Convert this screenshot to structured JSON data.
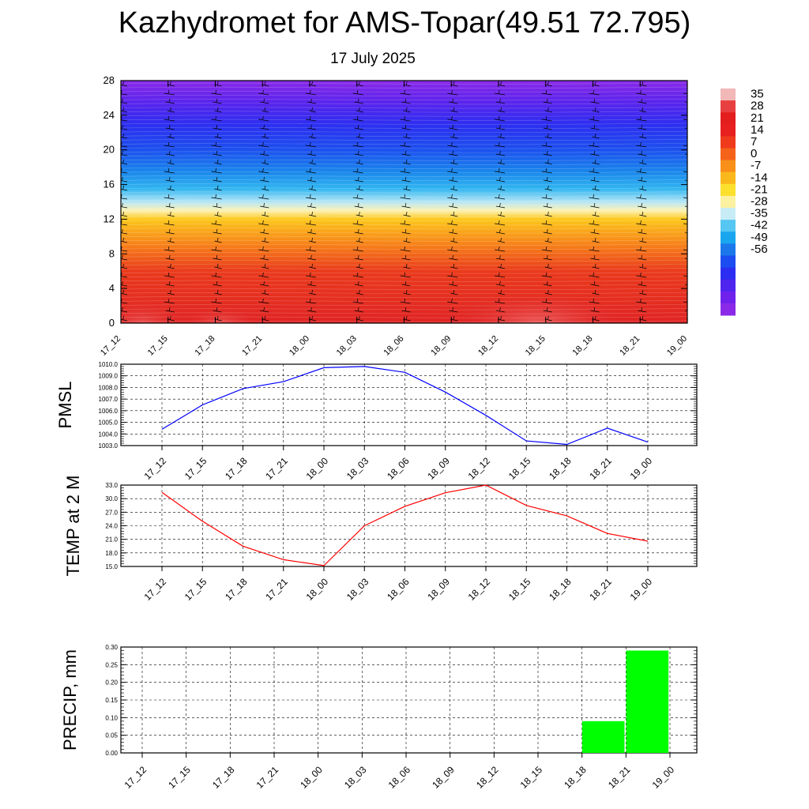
{
  "header": {
    "title": "Kazhydromet for AMS-Topar(49.51 72.795)",
    "subtitle": "17 July 2025"
  },
  "chart_data": [
    {
      "type": "heatmap",
      "name": "temperature-profile",
      "x_ticks": [
        "17_12",
        "17_15",
        "17_18",
        "17_21",
        "18_00",
        "18_03",
        "18_06",
        "18_09",
        "18_12",
        "18_15",
        "18_18",
        "18_21",
        "19_00"
      ],
      "y_ticks": [
        "0",
        "4",
        "8",
        "12",
        "16",
        "20",
        "24",
        "28"
      ],
      "ylim": [
        0,
        28
      ],
      "colorbar_labels": [
        "35",
        "28",
        "21",
        "14",
        "7",
        "0",
        "-7",
        "-14",
        "-21",
        "-28",
        "-35",
        "-42",
        "-49",
        "-56"
      ],
      "colorbar_colors": [
        "#f2b8b8",
        "#e84040",
        "#e41e1e",
        "#e82020",
        "#ef3a1c",
        "#f5621a",
        "#f8901a",
        "#fbb81c",
        "#fce02e",
        "#fbf1a0",
        "#c8ecf6",
        "#56c6f2",
        "#1aa6ee",
        "#1c78ea",
        "#1b4df0",
        "#2b2ef2",
        "#4e24ee",
        "#6e22ec",
        "#8a2ae8"
      ],
      "vertical_profile_colors": [
        {
          "level": 0,
          "color": "#e02424"
        },
        {
          "level": 6,
          "color": "#ea3a1c"
        },
        {
          "level": 9,
          "color": "#f7801a"
        },
        {
          "level": 12,
          "color": "#fcc81c"
        },
        {
          "level": 13,
          "color": "#fcf2b4"
        },
        {
          "level": 14,
          "color": "#b6e6f6"
        },
        {
          "level": 15.5,
          "color": "#32b6f0"
        },
        {
          "level": 17.5,
          "color": "#1a86ec"
        },
        {
          "level": 20,
          "color": "#1c50ee"
        },
        {
          "level": 23,
          "color": "#2e2ef0"
        },
        {
          "level": 25.5,
          "color": "#5a24ec"
        },
        {
          "level": 28,
          "color": "#8a2ae8"
        }
      ]
    },
    {
      "type": "line",
      "name": "pmsl",
      "ylabel": "PMSL",
      "categories": [
        "17_12",
        "17_15",
        "17_18",
        "17_21",
        "18_00",
        "18_03",
        "18_06",
        "18_09",
        "18_12",
        "18_15",
        "18_18",
        "18_21",
        "19_00"
      ],
      "values": [
        1004.4,
        1006.5,
        1007.9,
        1008.5,
        1009.7,
        1009.8,
        1009.3,
        1007.6,
        1005.6,
        1003.4,
        1003.1,
        1004.5,
        1003.3
      ],
      "ylim": [
        1003.0,
        1010.0
      ],
      "ytick_labels": [
        "1003.0",
        "1004.0",
        "1005.0",
        "1006.0",
        "1007.0",
        "1008.0",
        "1009.0",
        "1010.0"
      ],
      "color": "#0000ff"
    },
    {
      "type": "line",
      "name": "temp2m",
      "ylabel": "TEMP at 2 M",
      "categories": [
        "17_12",
        "17_15",
        "17_18",
        "17_21",
        "18_00",
        "18_03",
        "18_06",
        "18_09",
        "18_12",
        "18_15",
        "18_18",
        "18_21",
        "19_00"
      ],
      "values": [
        31.4,
        25.0,
        19.5,
        16.5,
        15.2,
        24.0,
        28.3,
        31.3,
        33.0,
        28.5,
        26.2,
        22.3,
        20.6
      ],
      "ylim": [
        15.0,
        33.0
      ],
      "ytick_labels": [
        "15.0",
        "18.0",
        "21.0",
        "24.0",
        "27.0",
        "30.0",
        "33.0"
      ],
      "color": "#ff0000"
    },
    {
      "type": "bar",
      "name": "precip",
      "ylabel": "PRECIP, mm",
      "categories": [
        "17_12",
        "17_15",
        "17_18",
        "17_21",
        "18_00",
        "18_03",
        "18_06",
        "18_09",
        "18_12",
        "18_15",
        "18_18",
        "18_21",
        "19_00"
      ],
      "values": [
        0,
        0,
        0,
        0,
        0,
        0,
        0,
        0,
        0,
        0,
        0.09,
        0.29,
        0
      ],
      "ylim": [
        0,
        0.3
      ],
      "ytick_labels": [
        "0.00",
        "0.05",
        "0.10",
        "0.15",
        "0.20",
        "0.25",
        "0.30"
      ],
      "color": "#00ff00"
    }
  ]
}
